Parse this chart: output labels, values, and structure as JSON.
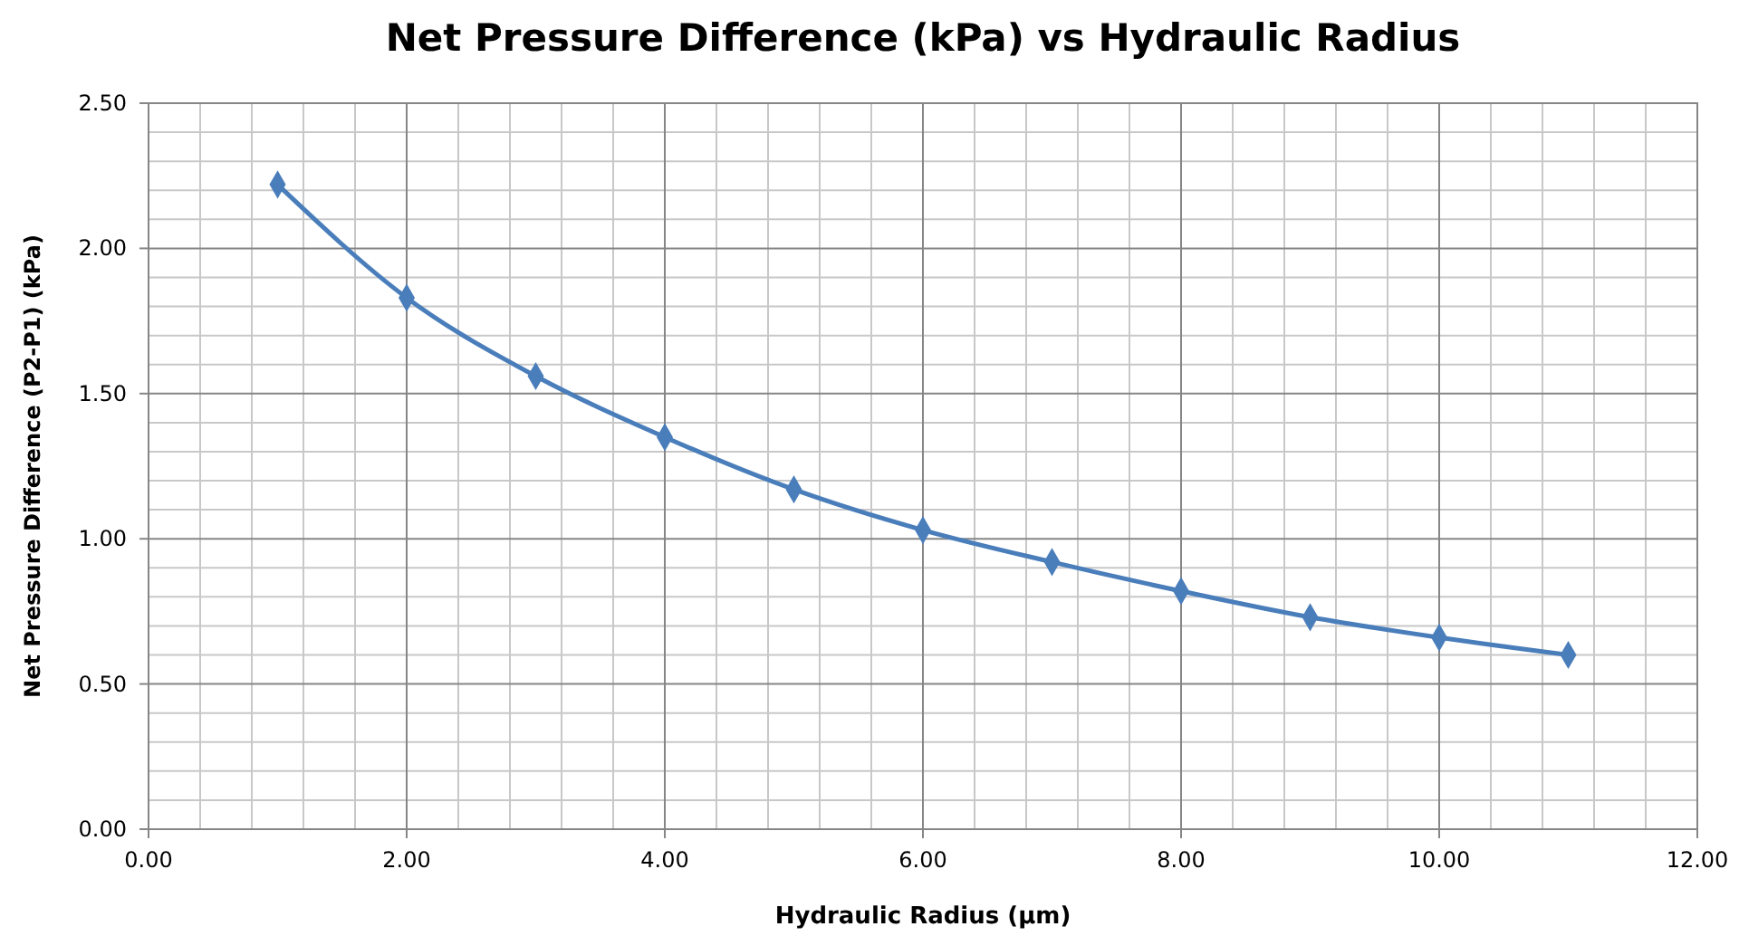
{
  "chart_data": {
    "type": "line",
    "title": "Net Pressure Difference (kPa) vs Hydraulic Radius",
    "xlabel": "Hydraulic Radius (µm)",
    "ylabel": "Net Pressure Difference  (P2-P1)  (kPa)",
    "x": [
      1,
      2,
      3,
      4,
      5,
      6,
      7,
      8,
      9,
      10,
      11
    ],
    "series": [
      {
        "color": "#4a7ebb",
        "values": [
          2.22,
          1.83,
          1.56,
          1.35,
          1.17,
          1.03,
          0.92,
          0.82,
          0.73,
          0.66,
          0.6
        ]
      }
    ],
    "xlim": [
      0,
      12
    ],
    "ylim": [
      0,
      2.5
    ],
    "xticks": [
      {
        "value": 0,
        "label": "0.00"
      },
      {
        "value": 2,
        "label": "2.00"
      },
      {
        "value": 4,
        "label": "4.00"
      },
      {
        "value": 6,
        "label": "6.00"
      },
      {
        "value": 8,
        "label": "8.00"
      },
      {
        "value": 10,
        "label": "10.00"
      },
      {
        "value": 12,
        "label": "12.00"
      }
    ],
    "yticks": [
      {
        "value": 0,
        "label": "0.00"
      },
      {
        "value": 0.5,
        "label": "0.50"
      },
      {
        "value": 1,
        "label": "1.00"
      },
      {
        "value": 1.5,
        "label": "1.50"
      },
      {
        "value": 2,
        "label": "2.00"
      },
      {
        "value": 2.5,
        "label": "2.50"
      }
    ],
    "grid": true,
    "marker": "diamond",
    "line_style": "solid"
  }
}
